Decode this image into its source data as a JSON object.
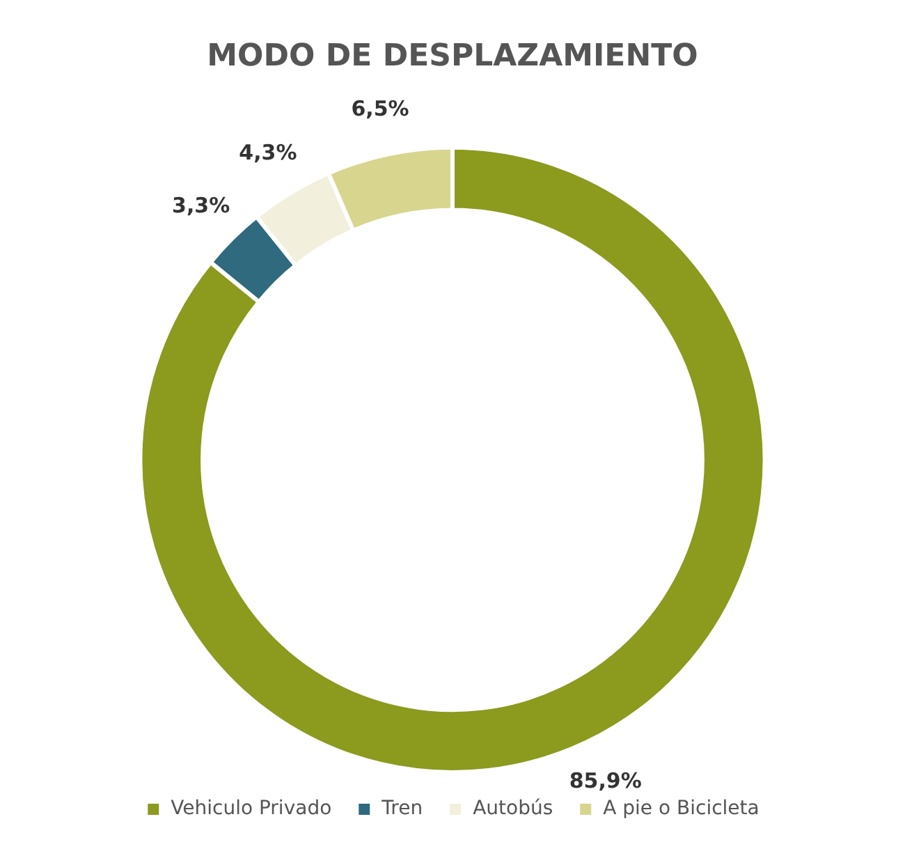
{
  "chart_data": {
    "type": "donut",
    "title": "MODO DE DESPLAZAMIENTO",
    "categories": [
      "Vehiculo Privado",
      "Tren",
      "Autobús",
      "A pie o Bicicleta"
    ],
    "values": [
      85.9,
      3.3,
      4.3,
      6.5
    ],
    "colors": [
      "#8c9a1e",
      "#2f6a7e",
      "#f2f0dc",
      "#d8d58e"
    ],
    "value_labels": [
      "85,9%",
      "3,3%",
      "4,3%",
      "6,5%"
    ],
    "legend": "bottom"
  }
}
